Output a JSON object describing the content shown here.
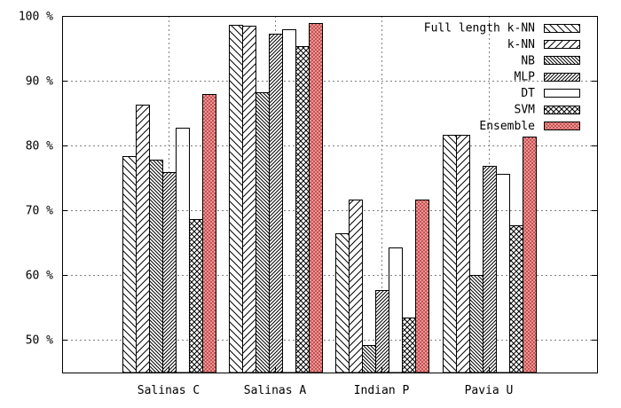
{
  "chart_data": {
    "type": "bar",
    "categories": [
      "Salinas C",
      "Salinas A",
      "Indian P",
      "Pavia U"
    ],
    "series": [
      {
        "name": "Full length k-NN",
        "pattern": "diag-back",
        "values": [
          78.4,
          98.6,
          66.5,
          81.7
        ]
      },
      {
        "name": "k-NN",
        "pattern": "diag-fwd",
        "values": [
          86.3,
          98.5,
          71.7,
          81.6
        ]
      },
      {
        "name": "NB",
        "pattern": "diag-back-dense",
        "values": [
          77.8,
          88.2,
          49.2,
          60.0
        ]
      },
      {
        "name": "MLP",
        "pattern": "diag-fwd-dense",
        "values": [
          75.9,
          97.2,
          57.7,
          76.9
        ]
      },
      {
        "name": "DT",
        "pattern": "empty",
        "values": [
          82.7,
          97.9,
          64.3,
          75.6
        ]
      },
      {
        "name": "SVM",
        "pattern": "crosshatch",
        "values": [
          68.7,
          95.3,
          53.5,
          67.7
        ]
      },
      {
        "name": "Ensemble",
        "pattern": "red-crosshatch",
        "values": [
          88.0,
          98.9,
          71.7,
          81.4
        ]
      }
    ],
    "y_ticks": [
      "50 %",
      "60 %",
      "70 %",
      "80 %",
      "90 %",
      "100 %"
    ],
    "y_tick_values": [
      50,
      60,
      70,
      80,
      90,
      100
    ],
    "ylim": [
      45,
      100
    ],
    "grid": true,
    "legend_position": "top-right",
    "title": "",
    "xlabel": "",
    "ylabel": "",
    "colors": {
      "ensemble_fill": "#f0a8a8",
      "ensemble_hatch": "#c04040",
      "grid": "#808080",
      "axis": "#000000"
    }
  }
}
